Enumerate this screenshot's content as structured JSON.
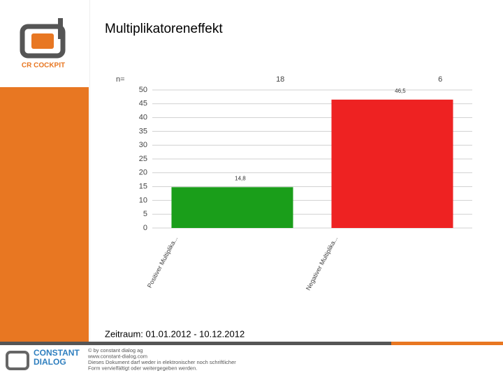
{
  "logo": "CR COCKPIT",
  "footer": {
    "company": "CONSTANT\nDIALOG",
    "lines": [
      "© by constant dialog ag",
      "www.constant-dialog.com",
      "Dieses Dokument darf weder in elektronischer noch schriftlicher",
      "Form vervielfältigt oder weitergegeben werden."
    ]
  },
  "period": "Zeitraum: 01.01.2012 - 10.12.2012",
  "chart_data": {
    "type": "bar",
    "title": "Multiplikatoreneffekt",
    "n_label": "n=",
    "n": [
      18,
      6
    ],
    "categories": [
      "Positiver Multiplika...",
      "Negativer Multiplika..."
    ],
    "values": [
      14.8,
      46.5
    ],
    "value_labels": [
      "14,8",
      "46,5"
    ],
    "colors": [
      "#1a9e1a",
      "#ee2222"
    ],
    "ylim": [
      0,
      50
    ],
    "yticks": [
      0,
      5,
      10,
      15,
      20,
      25,
      30,
      35,
      40,
      45,
      50
    ],
    "grid": true
  }
}
